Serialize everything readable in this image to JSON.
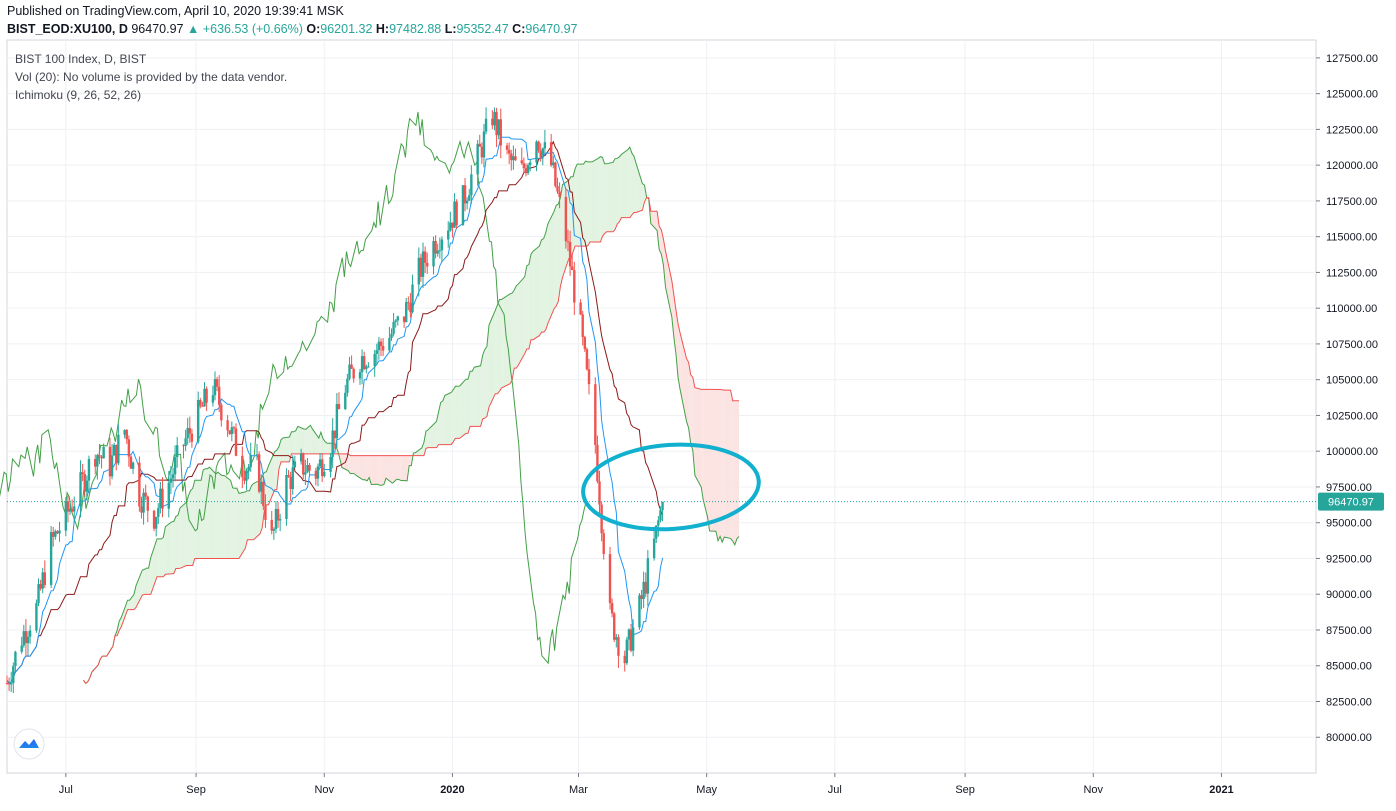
{
  "header": {
    "published": "Published on TradingView.com, April 10, 2020 19:39:41 MSK",
    "symbol_line": "BIST_EOD:XU100, D",
    "price": "96470.97",
    "change": "▲ +636.53 (+0.66%)",
    "o_label": "O:",
    "o_value": "96201.32",
    "h_label": "H:",
    "h_value": "97482.88",
    "l_label": "L:",
    "l_value": "95352.47",
    "c_label": "C:",
    "c_value": "96470.97"
  },
  "legend": {
    "title": "BIST 100 Index, D, BIST",
    "volume": "Vol (20): No volume is provided by the data vendor.",
    "indicator": "Ichimoku (9, 26, 52, 26)"
  },
  "colors": {
    "up": "#26a69a",
    "down": "#ef5350",
    "tenkan": "#2196f3",
    "kijun": "#8b1a1a",
    "lagging": "#43a047",
    "span_a": "#43a047",
    "span_b": "#ef5350",
    "cloud_green": "#e3f3e2",
    "cloud_red": "#fbe3e2",
    "annotation": "#11b0cf",
    "grid": "#eef0f3"
  },
  "chart_data": {
    "type": "candlestick",
    "title": "BIST 100 Index, D, BIST",
    "ylim": [
      77500,
      128750
    ],
    "y_ticks": [
      80000,
      82500,
      85000,
      87500,
      90000,
      92500,
      95000,
      97500,
      100000,
      102500,
      105000,
      107500,
      110000,
      112500,
      115000,
      117500,
      120000,
      122500,
      125000,
      127500
    ],
    "y_tick_labels": [
      "80000.00",
      "82500.00",
      "85000.00",
      "87500.00",
      "90000.00",
      "92500.00",
      "95000.00",
      "97500.00",
      "100000.00",
      "102500.00",
      "105000.00",
      "107500.00",
      "110000.00",
      "112500.00",
      "115000.00",
      "117500.00",
      "120000.00",
      "122500.00",
      "125000.00",
      "127500.00"
    ],
    "x_ticks": [
      {
        "date": "2019-07-01",
        "label": "Jul",
        "bold": false
      },
      {
        "date": "2019-09-01",
        "label": "Sep",
        "bold": false
      },
      {
        "date": "2019-11-01",
        "label": "Nov",
        "bold": false
      },
      {
        "date": "2020-01-01",
        "label": "2020",
        "bold": true
      },
      {
        "date": "2020-03-01",
        "label": "Mar",
        "bold": false
      },
      {
        "date": "2020-05-01",
        "label": "May",
        "bold": false
      },
      {
        "date": "2020-07-01",
        "label": "Jul",
        "bold": false
      },
      {
        "date": "2020-09-01",
        "label": "Sep",
        "bold": false
      },
      {
        "date": "2020-11-01",
        "label": "Nov",
        "bold": false
      },
      {
        "date": "2021-01-01",
        "label": "2021",
        "bold": true
      }
    ],
    "last_price": 96470.97,
    "last_price_label": "96470.97",
    "close": [
      [
        "2019-06-03",
        83800
      ],
      [
        "2019-06-10",
        87000
      ],
      [
        "2019-06-17",
        89000
      ],
      [
        "2019-06-24",
        93500
      ],
      [
        "2019-07-01",
        95500
      ],
      [
        "2019-07-08",
        97500
      ],
      [
        "2019-07-15",
        100000
      ],
      [
        "2019-07-22",
        99000
      ],
      [
        "2019-07-29",
        101500
      ],
      [
        "2019-08-05",
        97000
      ],
      [
        "2019-08-12",
        95500
      ],
      [
        "2019-08-19",
        97800
      ],
      [
        "2019-08-26",
        100500
      ],
      [
        "2019-09-02",
        102500
      ],
      [
        "2019-09-09",
        104500
      ],
      [
        "2019-09-16",
        102000
      ],
      [
        "2019-09-23",
        99000
      ],
      [
        "2019-09-30",
        98800
      ],
      [
        "2019-10-07",
        93800
      ],
      [
        "2019-10-14",
        97800
      ],
      [
        "2019-10-21",
        99000
      ],
      [
        "2019-10-28",
        98500
      ],
      [
        "2019-11-04",
        100500
      ],
      [
        "2019-11-11",
        104500
      ],
      [
        "2019-11-18",
        106500
      ],
      [
        "2019-11-25",
        107000
      ],
      [
        "2019-12-02",
        108000
      ],
      [
        "2019-12-09",
        109500
      ],
      [
        "2019-12-16",
        112500
      ],
      [
        "2019-12-23",
        114500
      ],
      [
        "2019-12-30",
        116000
      ],
      [
        "2020-01-06",
        117500
      ],
      [
        "2020-01-13",
        120500
      ],
      [
        "2020-01-20",
        123500
      ],
      [
        "2020-01-27",
        120500
      ],
      [
        "2020-02-03",
        119500
      ],
      [
        "2020-02-10",
        122000
      ],
      [
        "2020-02-17",
        120000
      ],
      [
        "2020-02-24",
        115000
      ],
      [
        "2020-03-02",
        108500
      ],
      [
        "2020-03-09",
        100500
      ],
      [
        "2020-03-16",
        88500
      ],
      [
        "2020-03-23",
        85500
      ],
      [
        "2020-03-30",
        89000
      ],
      [
        "2020-04-06",
        93500
      ],
      [
        "2020-04-10",
        96470.97
      ]
    ]
  }
}
